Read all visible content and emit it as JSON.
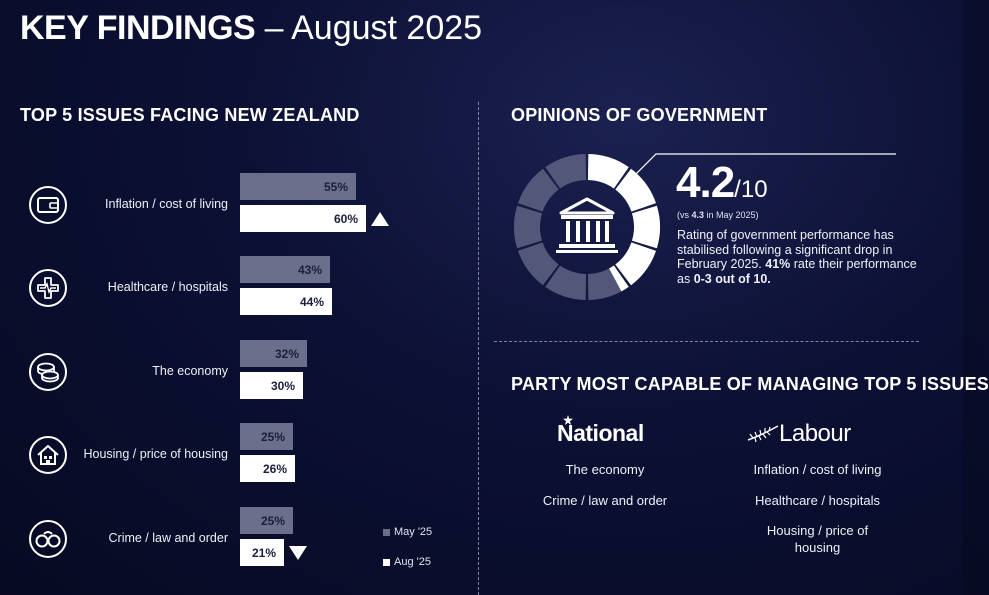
{
  "title": {
    "bold": "KEY FINDINGS",
    "rest": " – August 2025"
  },
  "issues_section": {
    "heading": "TOP 5 ISSUES FACING NEW ZEALAND",
    "legend": {
      "may": "May '25",
      "aug": "Aug '25",
      "may_color": "#6b6f8c",
      "aug_color": "#ffffff"
    }
  },
  "chart_data": {
    "type": "bar",
    "title": "TOP 5 ISSUES FACING NEW ZEALAND",
    "categories": [
      "Inflation / cost of living",
      "Healthcare / hospitals",
      "The economy",
      "Housing / price of housing",
      "Crime / law and order"
    ],
    "series": [
      {
        "name": "May '25",
        "values": [
          55,
          43,
          32,
          25,
          25
        ],
        "labels": [
          "55%",
          "43%",
          "32%",
          "25%",
          "25%"
        ],
        "color": "#6b6f8c"
      },
      {
        "name": "Aug '25",
        "values": [
          60,
          44,
          30,
          26,
          21
        ],
        "labels": [
          "60%",
          "44%",
          "30%",
          "26%",
          "21%"
        ],
        "color": "#ffffff"
      }
    ],
    "significant_changes": [
      "up",
      "none",
      "none",
      "none",
      "down"
    ],
    "icons": [
      "wallet-icon",
      "heart-monitor-icon",
      "coins-icon",
      "house-icon",
      "handcuffs-icon"
    ],
    "unit": "%"
  },
  "opinions": {
    "heading": "OPINIONS OF GOVERNMENT",
    "score": "4.2",
    "score_denominator": "/10",
    "score_value": 4.2,
    "score_max": 10,
    "note_prefix": "(vs ",
    "note_value": "4.3",
    "note_suffix": " in May 2025)",
    "desc_1": "Rating of government performance has stabilised following a significant drop in February 2025. ",
    "desc_bold_1": "41%",
    "desc_2": " rate their performance as ",
    "desc_bold_2": "0-3 out of 10.",
    "icon": "government-building-icon"
  },
  "party": {
    "heading": "PARTY MOST CAPABLE OF MANAGING TOP 5 ISSUES",
    "national": {
      "logo": "National",
      "items": [
        "The economy",
        "Crime / law and order"
      ]
    },
    "labour": {
      "logo": "Labour",
      "items": [
        "Inflation / cost of living",
        "Healthcare / hospitals",
        "Housing / price of housing"
      ]
    }
  }
}
